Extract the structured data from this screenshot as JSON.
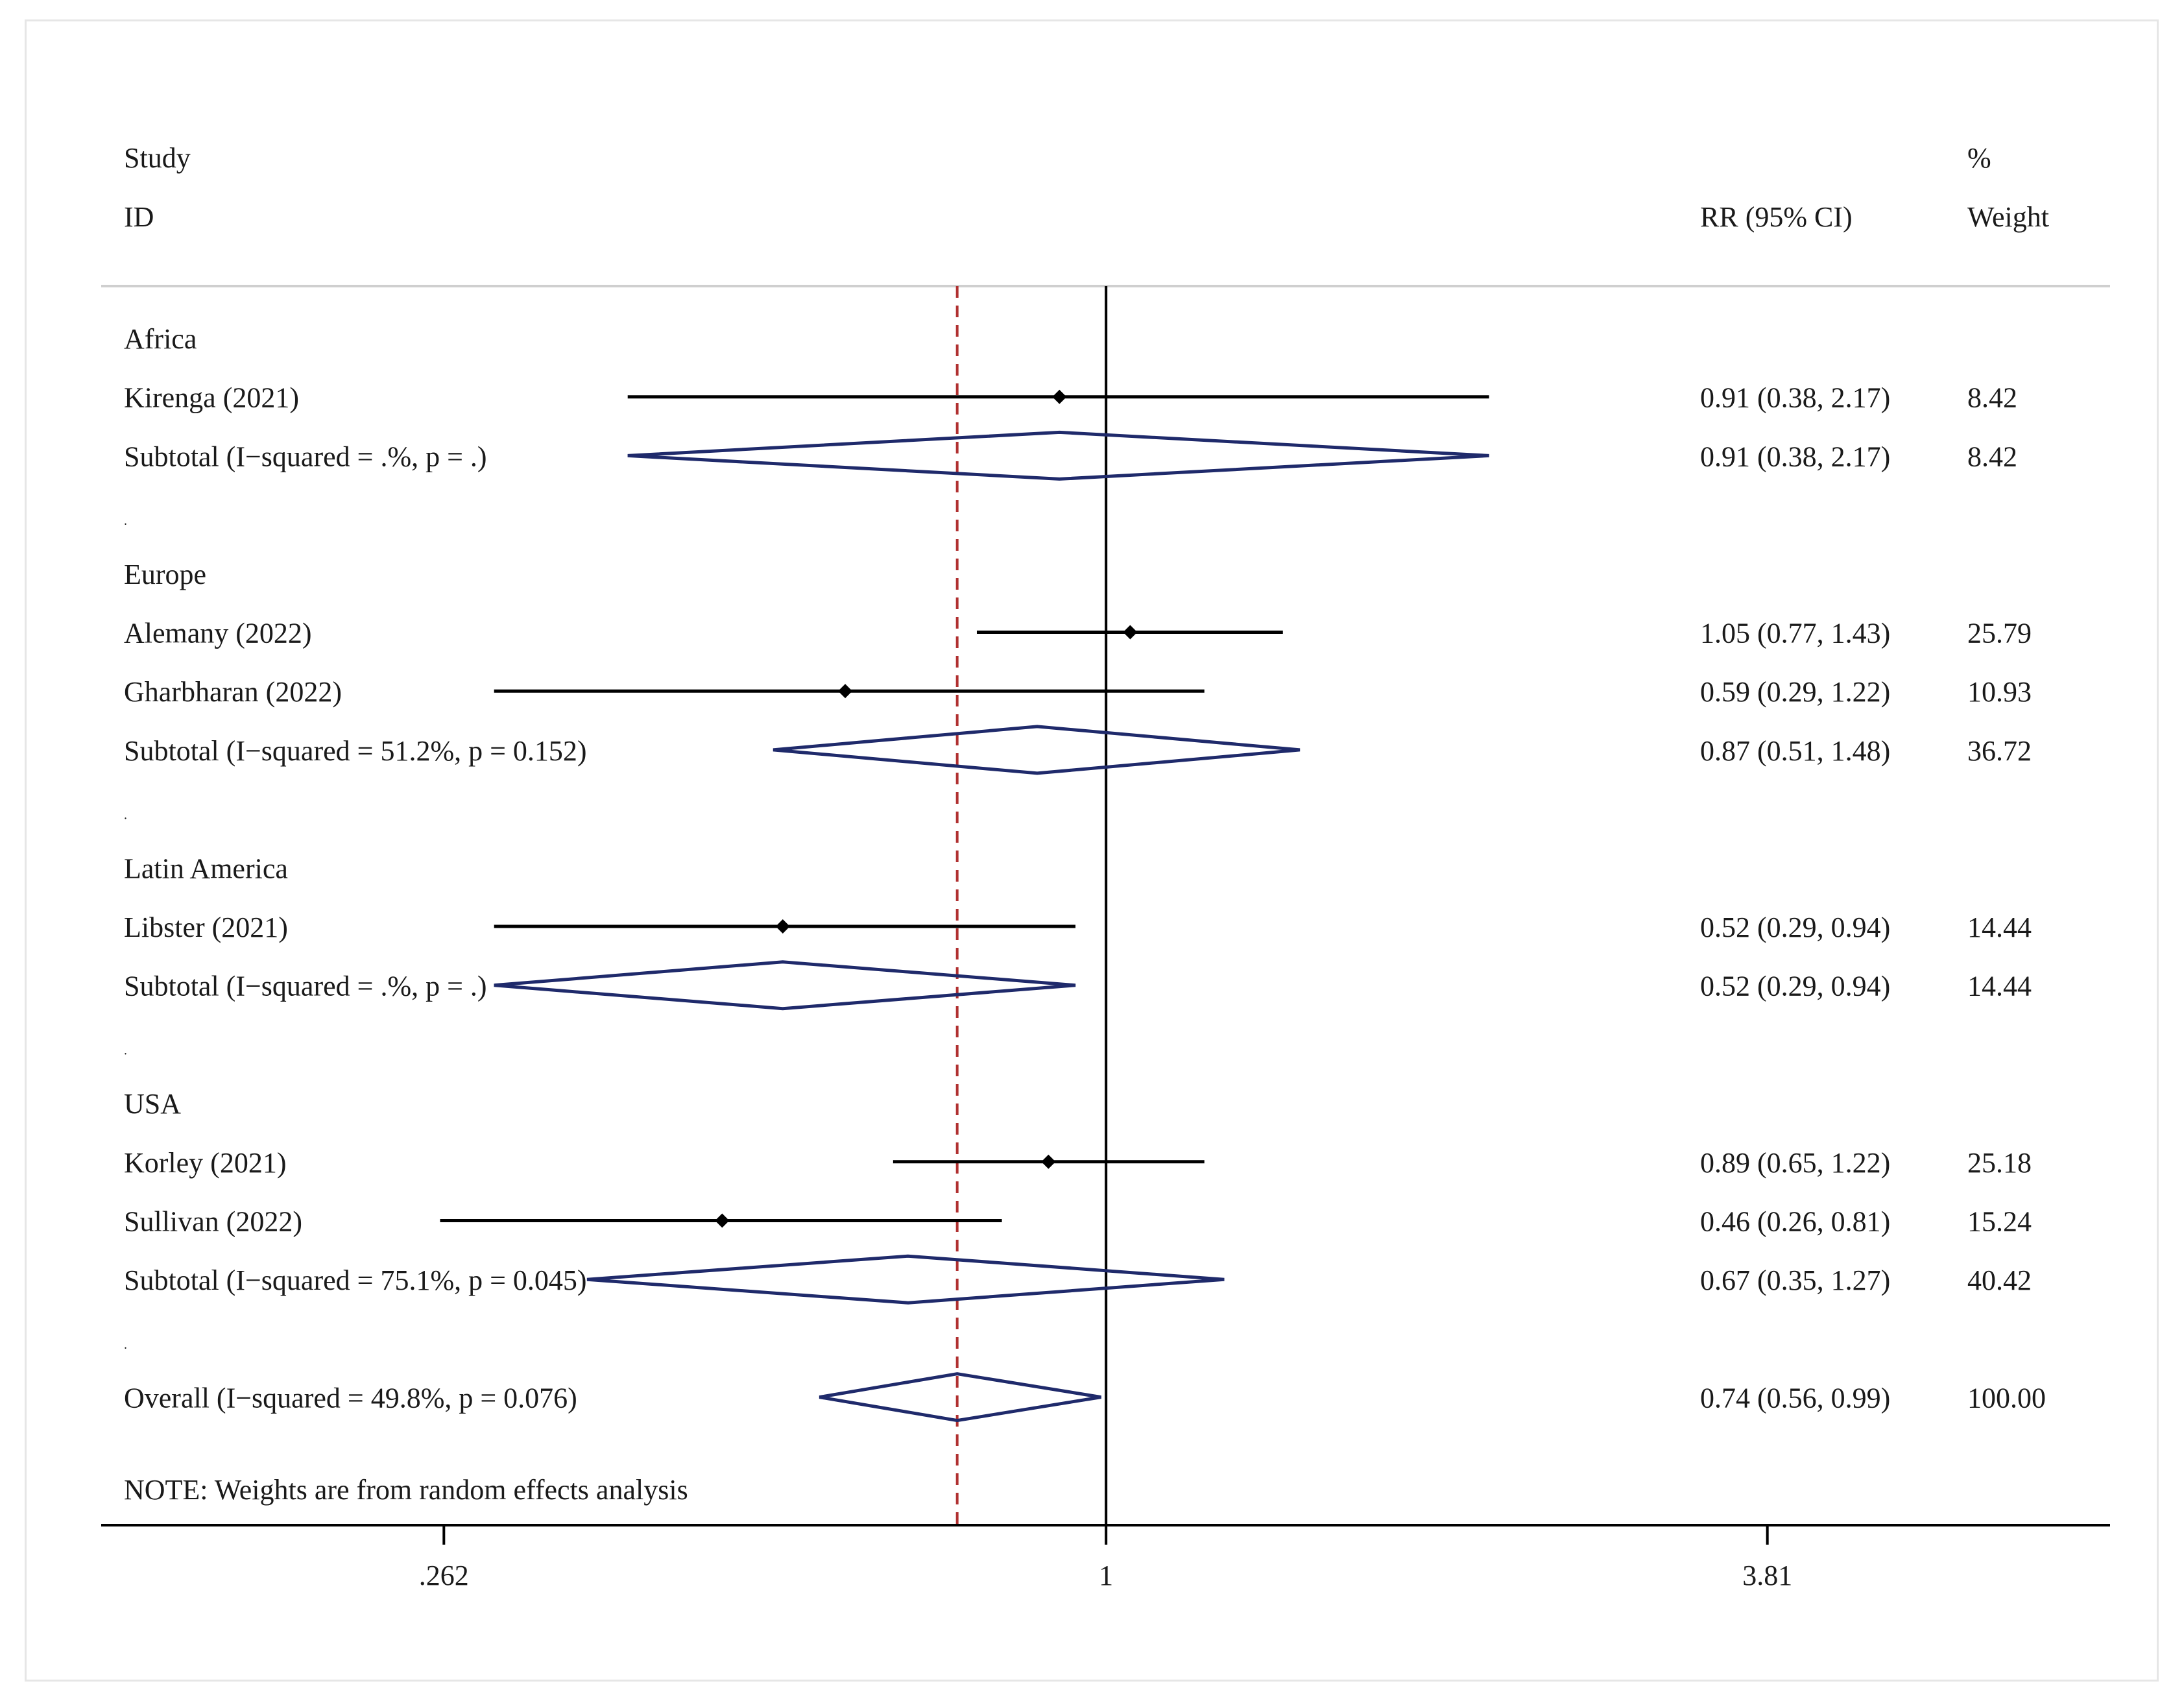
{
  "chart_data": {
    "type": "forest",
    "header": {
      "study_line1": "Study",
      "study_line2": "ID",
      "effect_label": "RR (95% CI)",
      "weight_line1": "%",
      "weight_line2": "Weight"
    },
    "rows": [
      {
        "kind": "group",
        "label": "Africa"
      },
      {
        "kind": "study",
        "label": "Kirenga (2021)",
        "rr": 0.91,
        "lo": 0.38,
        "hi": 2.17,
        "ci_text": "0.91 (0.38, 2.17)",
        "weight": "8.42"
      },
      {
        "kind": "subtotal",
        "label": "Subtotal  (I−squared = .%, p = .)",
        "rr": 0.91,
        "lo": 0.38,
        "hi": 2.17,
        "ci_text": "0.91 (0.38, 2.17)",
        "weight": "8.42"
      },
      {
        "kind": "spacer",
        "label": "."
      },
      {
        "kind": "group",
        "label": "Europe"
      },
      {
        "kind": "study",
        "label": "Alemany (2022)",
        "rr": 1.05,
        "lo": 0.77,
        "hi": 1.43,
        "ci_text": "1.05 (0.77, 1.43)",
        "weight": "25.79"
      },
      {
        "kind": "study",
        "label": "Gharbharan (2022)",
        "rr": 0.59,
        "lo": 0.29,
        "hi": 1.22,
        "ci_text": "0.59 (0.29, 1.22)",
        "weight": "10.93"
      },
      {
        "kind": "subtotal",
        "label": "Subtotal  (I−squared = 51.2%, p = 0.152)",
        "rr": 0.87,
        "lo": 0.51,
        "hi": 1.48,
        "ci_text": "0.87 (0.51, 1.48)",
        "weight": "36.72"
      },
      {
        "kind": "spacer",
        "label": "."
      },
      {
        "kind": "group",
        "label": "Latin America"
      },
      {
        "kind": "study",
        "label": "Libster (2021)",
        "rr": 0.52,
        "lo": 0.29,
        "hi": 0.94,
        "ci_text": "0.52 (0.29, 0.94)",
        "weight": "14.44"
      },
      {
        "kind": "subtotal",
        "label": "Subtotal  (I−squared = .%, p = .)",
        "rr": 0.52,
        "lo": 0.29,
        "hi": 0.94,
        "ci_text": "0.52 (0.29, 0.94)",
        "weight": "14.44"
      },
      {
        "kind": "spacer",
        "label": "."
      },
      {
        "kind": "group",
        "label": "USA"
      },
      {
        "kind": "study",
        "label": "Korley (2021)",
        "rr": 0.89,
        "lo": 0.65,
        "hi": 1.22,
        "ci_text": "0.89 (0.65, 1.22)",
        "weight": "25.18"
      },
      {
        "kind": "study",
        "label": "Sullivan (2022)",
        "rr": 0.46,
        "lo": 0.26,
        "hi": 0.81,
        "ci_text": "0.46 (0.26, 0.81)",
        "weight": "15.24"
      },
      {
        "kind": "subtotal",
        "label": "Subtotal  (I−squared = 75.1%, p = 0.045)",
        "rr": 0.67,
        "lo": 0.35,
        "hi": 1.27,
        "ci_text": "0.67 (0.35, 1.27)",
        "weight": "40.42"
      },
      {
        "kind": "spacer",
        "label": "."
      },
      {
        "kind": "overall",
        "label": "Overall  (I−squared = 49.8%, p = 0.076)",
        "rr": 0.74,
        "lo": 0.56,
        "hi": 0.99,
        "ci_text": "0.74 (0.56, 0.99)",
        "weight": "100.00"
      }
    ],
    "note": "NOTE: Weights are from random effects analysis",
    "x_axis": {
      "scale": "log",
      "range": [
        0.131,
        7.62
      ],
      "ticks": [
        {
          "value": 0.262,
          "label": ".262"
        },
        {
          "value": 1,
          "label": "1"
        },
        {
          "value": 3.81,
          "label": "3.81"
        }
      ],
      "null_line": 1,
      "overall_line": 0.74
    },
    "colors": {
      "ci_line": "#000000",
      "diamond": "#1f2a6b",
      "overall_dashed": "#b03030",
      "separator": "#cfcfcf",
      "axis": "#000000"
    }
  }
}
